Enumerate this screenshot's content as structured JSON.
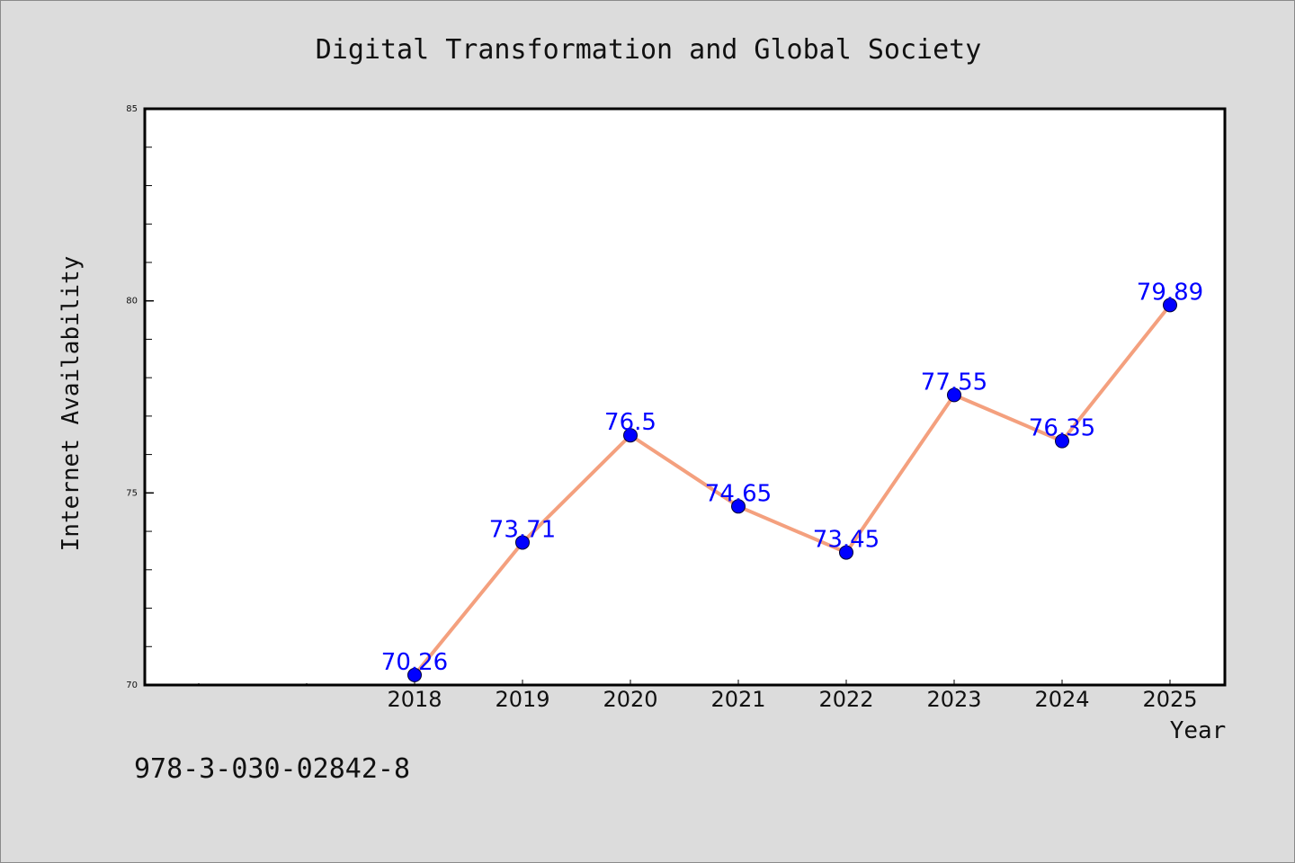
{
  "chart_data": {
    "type": "line",
    "title": "Digital Transformation and Global Society",
    "xlabel": "Year",
    "ylabel": "Internet Availability",
    "x": [
      "2018",
      "2019",
      "2020",
      "2021",
      "2022",
      "2023",
      "2024",
      "2025"
    ],
    "series": [
      {
        "values": [
          70.26,
          73.71,
          76.5,
          74.65,
          73.45,
          77.55,
          76.35,
          79.89
        ],
        "data_labels": [
          "70.26",
          "73.71",
          "76.5",
          "74.65",
          "73.45",
          "77.55",
          "76.35",
          "79.89"
        ]
      }
    ],
    "ylim": [
      70,
      85
    ],
    "yticks": [
      "70",
      "75",
      "80",
      "85"
    ],
    "grid": false,
    "legend": "none",
    "colors": {
      "line": "#f4a07e",
      "marker": "#0000ff",
      "data_label": "#0000ff",
      "background": "#dcdcdc",
      "plot_background": "#ffffff"
    }
  },
  "footer": {
    "isbn": "978-3-030-02842-8"
  }
}
